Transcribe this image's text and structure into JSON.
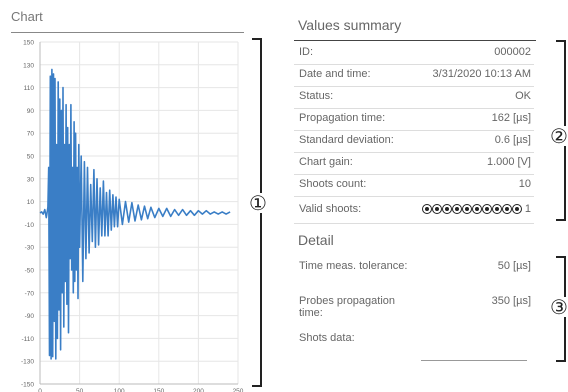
{
  "chart_panel": {
    "title": "Chart"
  },
  "chart_data": {
    "type": "line",
    "title": "",
    "xlabel": "",
    "ylabel": "",
    "xlim": [
      0,
      250
    ],
    "ylim": [
      -150,
      150
    ],
    "x_ticks": [
      0,
      50,
      100,
      150,
      200,
      250
    ],
    "y_ticks": [
      150,
      130,
      110,
      90,
      70,
      50,
      30,
      10,
      -10,
      -30,
      -50,
      -70,
      -90,
      -110,
      -130,
      -150
    ],
    "grid": true,
    "line_color": "#3a7ec6",
    "series": [
      {
        "name": "",
        "x": [
          0,
          2,
          4,
          6,
          8,
          10,
          11,
          12,
          13,
          14,
          15,
          16,
          17,
          18,
          19,
          20,
          21,
          22,
          23,
          24,
          25,
          26,
          27,
          28,
          29,
          30,
          31,
          32,
          33,
          34,
          35,
          36,
          37,
          38,
          39,
          40,
          41,
          42,
          43,
          44,
          45,
          46,
          47,
          48,
          49,
          50,
          52,
          54,
          56,
          58,
          60,
          62,
          64,
          66,
          68,
          70,
          72,
          74,
          76,
          78,
          80,
          82,
          84,
          86,
          88,
          90,
          92,
          94,
          96,
          98,
          100,
          104,
          108,
          112,
          116,
          120,
          124,
          128,
          132,
          136,
          140,
          145,
          150,
          155,
          160,
          165,
          170,
          175,
          180,
          185,
          190,
          195,
          200,
          205,
          210,
          215,
          220,
          225,
          230,
          235,
          240
        ],
        "y": [
          0,
          1,
          -1,
          3,
          -4,
          5,
          40,
          -125,
          120,
          -128,
          126,
          -126,
          122,
          -95,
          118,
          -128,
          60,
          -110,
          115,
          -85,
          100,
          -120,
          90,
          -70,
          110,
          -100,
          60,
          -60,
          95,
          -80,
          75,
          -105,
          60,
          -40,
          95,
          -50,
          40,
          -70,
          80,
          -60,
          70,
          -50,
          40,
          -75,
          60,
          -30,
          50,
          -60,
          45,
          -40,
          40,
          -35,
          25,
          -25,
          38,
          -30,
          30,
          -28,
          22,
          -20,
          28,
          -20,
          18,
          -20,
          20,
          -15,
          16,
          -12,
          14,
          -12,
          12,
          -10,
          10,
          -8,
          9,
          -7,
          7,
          -6,
          6,
          -5,
          5,
          -4,
          4,
          -3,
          4,
          -3,
          3,
          -2,
          3,
          -2,
          2,
          -2,
          2,
          -1,
          2,
          -1,
          1,
          -1,
          1,
          -1,
          1
        ]
      }
    ]
  },
  "summary": {
    "title": "Values summary",
    "rows": [
      {
        "label": "ID:",
        "value": "000002"
      },
      {
        "label": "Date and time:",
        "value": "3/31/2020 10:13 AM"
      },
      {
        "label": "Status:",
        "value": "OK"
      },
      {
        "label": "Propagation time:",
        "value": "162 [µs]"
      },
      {
        "label": "Standard deviation:",
        "value": "0.6 [µs]"
      },
      {
        "label": "Chart gain:",
        "value": "1.000 [V]"
      },
      {
        "label": "Shoots count:",
        "value": "10"
      }
    ],
    "valid_shoots": {
      "label": "Valid shoots:",
      "dot_count": 10,
      "value": "1"
    }
  },
  "detail": {
    "title": "Detail",
    "rows": [
      {
        "label": "Time meas. tolerance:",
        "value": "50 [µs]"
      },
      {
        "label": "Probes propagation time:",
        "value": "350 [µs]"
      },
      {
        "label": "Shots data:",
        "value": ""
      }
    ]
  },
  "callouts": [
    "①",
    "②",
    "③"
  ]
}
